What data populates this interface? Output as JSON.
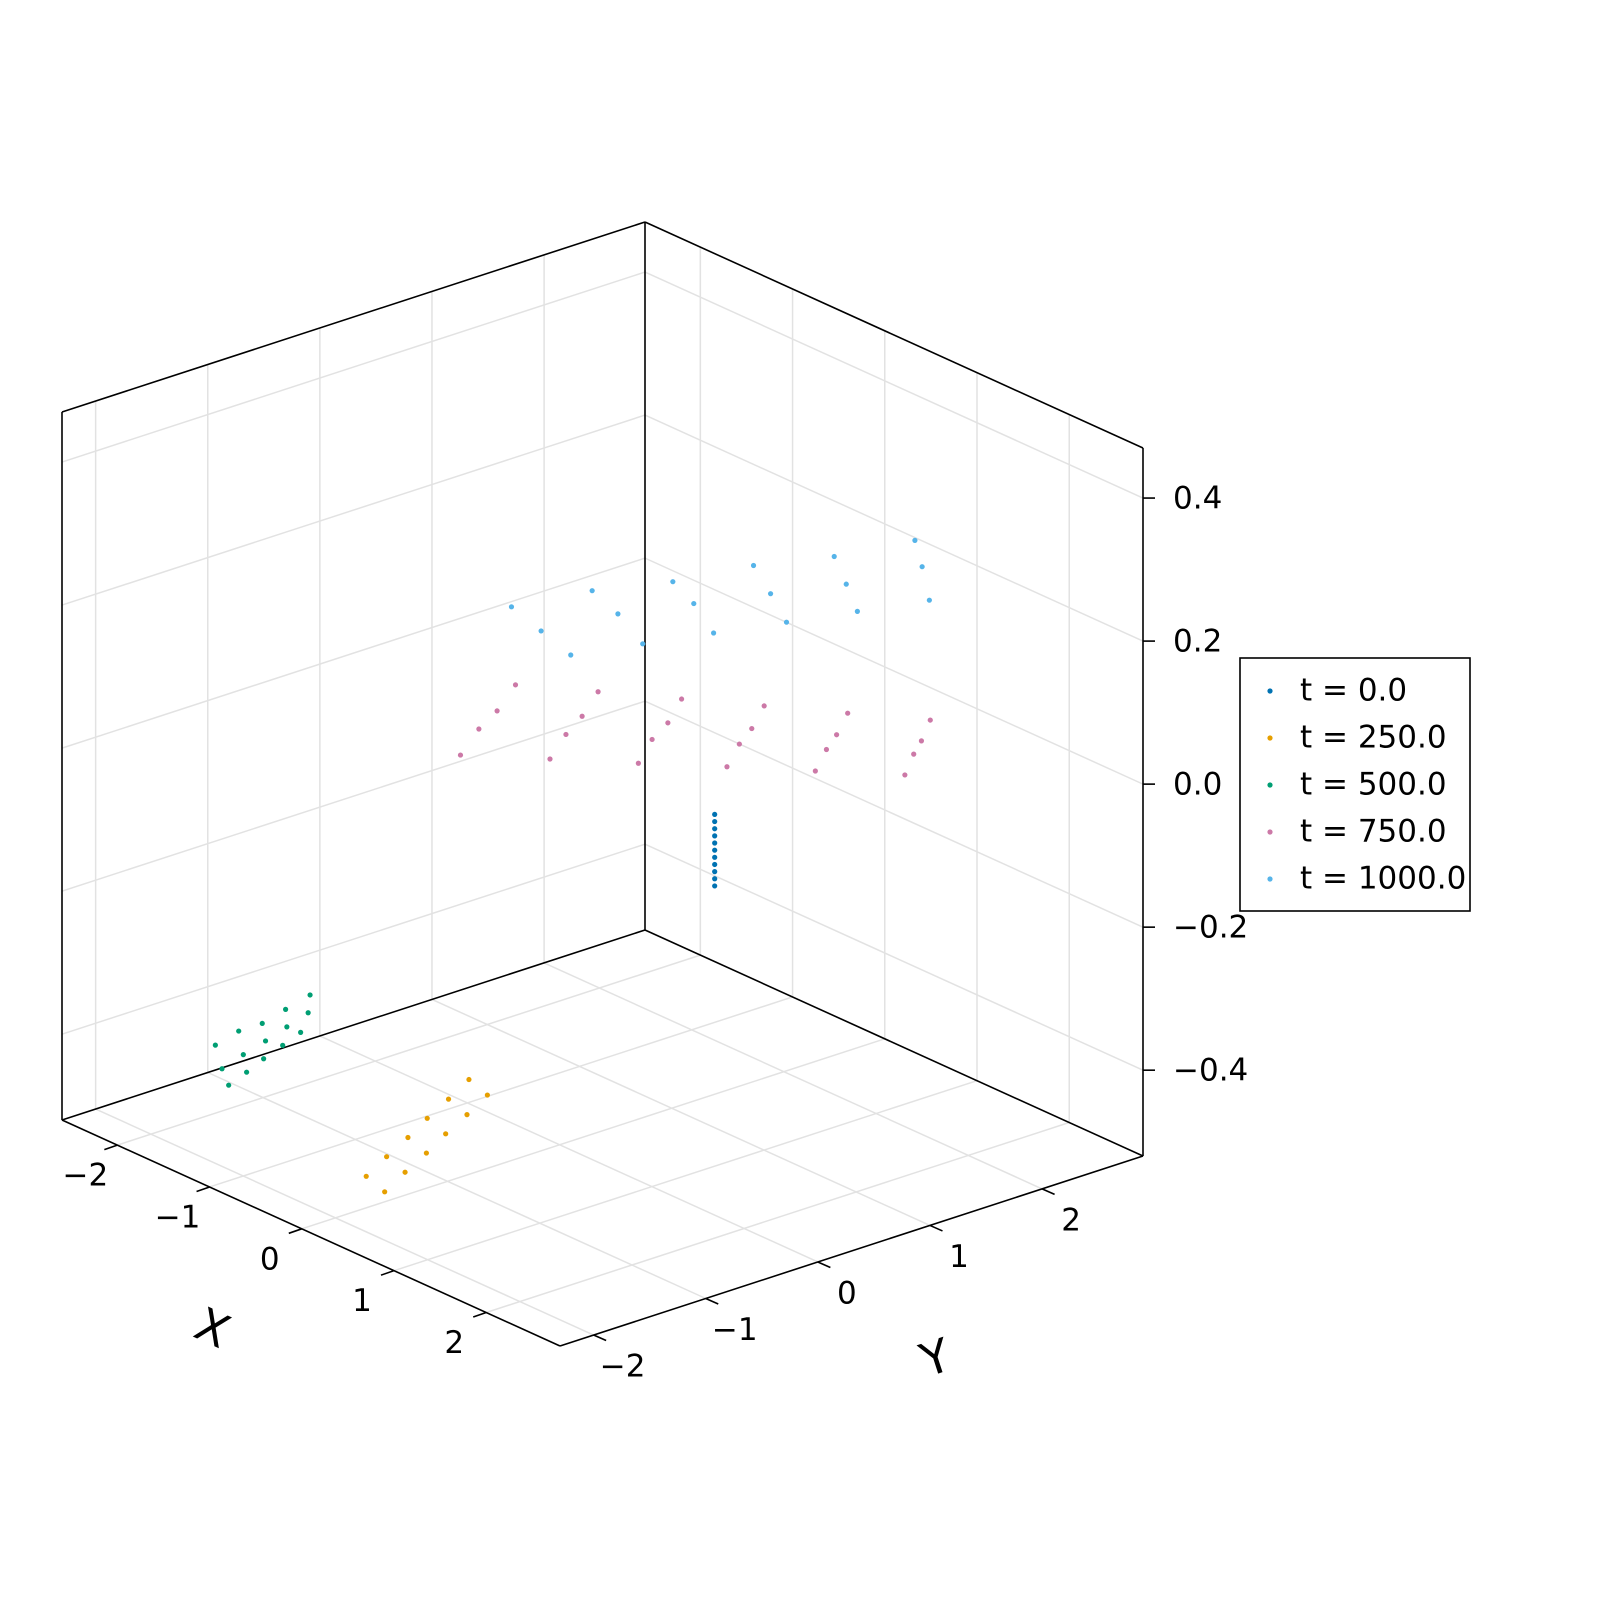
{
  "chart_data": {
    "type": "scatter3d",
    "x_label": "X",
    "y_label": "Y",
    "xlim": [
      -2.6,
      2.8
    ],
    "ylim": [
      -2.3,
      2.9
    ],
    "zlim": [
      -0.52,
      0.47
    ],
    "xticks": [
      {
        "value": -2,
        "label": "−2"
      },
      {
        "value": -1,
        "label": "−1"
      },
      0,
      1,
      2
    ],
    "yticks": [
      {
        "value": -2,
        "label": "−2"
      },
      {
        "value": -1,
        "label": "−1"
      },
      0,
      1,
      2
    ],
    "zticks": [
      {
        "value": -0.4,
        "label": "−0.4"
      },
      {
        "value": -0.2,
        "label": "−0.2"
      },
      {
        "value": 0,
        "label": "0.0"
      },
      0.2,
      0.4
    ],
    "grid": true,
    "legend": "right",
    "series": [
      {
        "name": "t = 0.0",
        "color": "#0072b2",
        "x": [
          1.28,
          1.28,
          1.28,
          1.28,
          1.28,
          1.28,
          1.28,
          1.28,
          1.28,
          1.28,
          1.28
        ],
        "y": [
          0.33,
          0.33,
          0.33,
          0.33,
          0.33,
          0.33,
          0.33,
          0.33,
          0.33,
          0.33,
          0.33
        ],
        "z": [
          -0.1,
          -0.09,
          -0.08,
          -0.07,
          -0.06,
          -0.05,
          -0.04,
          -0.03,
          -0.02,
          -0.01,
          0.0
        ]
      },
      {
        "name": "t = 250.0",
        "color": "#e69f00",
        "x": [
          0.06,
          -0.12,
          -0.29,
          -0.47,
          -0.64,
          -0.82,
          -0.14,
          -0.32,
          -0.49,
          -0.67,
          -0.84,
          -1.02
        ],
        "y": [
          -1.61,
          -1.28,
          -0.95,
          -0.63,
          -0.3,
          0.03,
          -1.61,
          -1.28,
          -0.95,
          -0.63,
          -0.3,
          0.03
        ],
        "z": [
          -0.5,
          -0.5,
          -0.5,
          -0.5,
          -0.5,
          -0.5,
          -0.49,
          -0.49,
          -0.49,
          -0.49,
          -0.49,
          -0.49
        ]
      },
      {
        "name": "t = 500.0",
        "color": "#009e73",
        "x": [
          -2.25,
          -2.24,
          -2.24,
          -2.23,
          -2.22,
          -2.19,
          -2.19,
          -2.18,
          -2.18,
          -2.18,
          -2.13,
          -2.13,
          -2.14,
          -2.14,
          -2.14
        ],
        "y": [
          -1.22,
          -1.02,
          -0.81,
          -0.61,
          -0.4,
          -1.21,
          -1.02,
          -0.83,
          -0.64,
          -0.45,
          -1.2,
          -1.04,
          -0.88,
          -0.71,
          -0.55
        ],
        "z": [
          -0.45,
          -0.44,
          -0.44,
          -0.43,
          -0.42,
          -0.48,
          -0.47,
          -0.46,
          -0.45,
          -0.44,
          -0.5,
          -0.49,
          -0.48,
          -0.47,
          -0.46
        ]
      },
      {
        "name": "t = 750.0",
        "color": "#cc79a7",
        "x": [
          -0.2,
          0.26,
          0.72,
          1.17,
          1.63,
          2.09,
          -0.28,
          0.19,
          0.65,
          1.11,
          1.58,
          2.04,
          -0.35,
          0.11,
          0.59,
          1.05,
          1.52,
          1.99,
          -0.43,
          0.04,
          0.52,
          0.99,
          1.47,
          1.94
        ],
        "y": [
          -0.72,
          -0.3,
          0.11,
          0.53,
          0.94,
          1.36,
          -0.49,
          -0.1,
          0.29,
          0.69,
          1.08,
          1.48,
          -0.27,
          0.11,
          0.48,
          0.85,
          1.22,
          1.59,
          -0.04,
          0.31,
          0.66,
          1.01,
          1.36,
          1.71
        ],
        "z": [
          0.05,
          0.05,
          0.05,
          0.05,
          0.05,
          0.05,
          0.07,
          0.07,
          0.07,
          0.07,
          0.07,
          0.07,
          0.08,
          0.08,
          0.08,
          0.08,
          0.08,
          0.08,
          0.1,
          0.1,
          0.1,
          0.1,
          0.1,
          0.1
        ]
      },
      {
        "name": "t = 1000.0",
        "color": "#56b4e9",
        "x": [
          0.4,
          0.67,
          0.94,
          1.22,
          1.49,
          1.76,
          0.03,
          0.34,
          0.64,
          0.95,
          1.26,
          1.56,
          -0.34,
          0.0,
          0.34,
          0.68,
          1.02,
          1.36
        ],
        "y": [
          -0.23,
          0.19,
          0.6,
          1.02,
          1.43,
          1.85,
          -0.19,
          0.24,
          0.67,
          1.1,
          1.52,
          1.95,
          -0.15,
          0.29,
          0.73,
          1.17,
          1.61,
          2.05
        ],
        "z": [
          0.2,
          0.21,
          0.22,
          0.23,
          0.24,
          0.25,
          0.21,
          0.23,
          0.24,
          0.25,
          0.26,
          0.28,
          0.22,
          0.24,
          0.25,
          0.27,
          0.28,
          0.3
        ]
      }
    ]
  }
}
